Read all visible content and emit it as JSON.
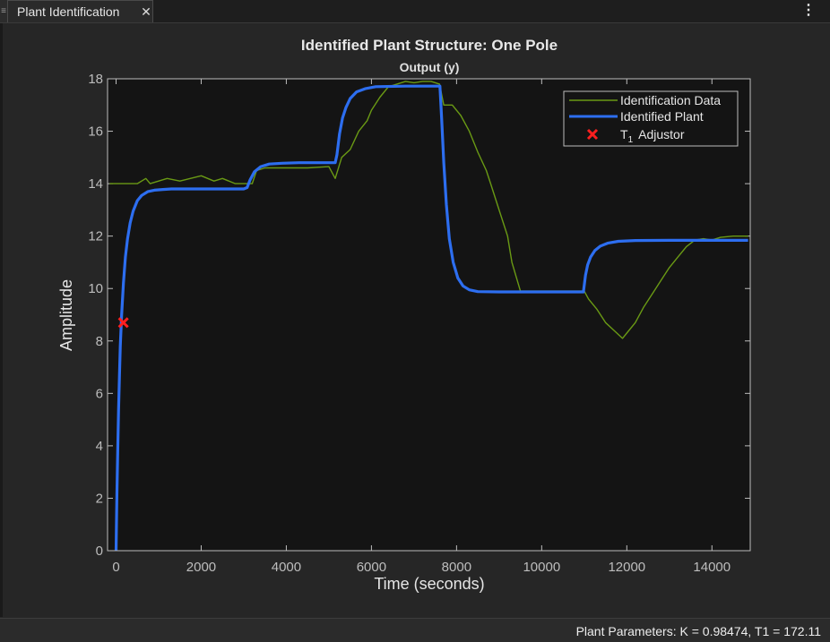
{
  "tab": {
    "title": "Plant Identification"
  },
  "status": {
    "text": "Plant Parameters: K = 0.98474, T1 = 172.11"
  },
  "icons": [
    "grip-icon",
    "close-icon",
    "more-vertical-icon"
  ],
  "colors": {
    "identification_data": "#6a9a14",
    "identified_plant": "#2d6ef0",
    "adjustor": "#ff1f1f",
    "axes_bg": "#141414",
    "figure_bg": "#262626"
  },
  "chart_data": {
    "type": "line",
    "title": "Identified Plant Structure: One Pole",
    "subtitle": "Output (y)",
    "xlabel": "Time (seconds)",
    "ylabel": "Amplitude",
    "xlim": [
      -200,
      14900
    ],
    "ylim": [
      0,
      18
    ],
    "xticks": [
      0,
      2000,
      4000,
      6000,
      8000,
      10000,
      12000,
      14000
    ],
    "yticks": [
      0,
      2,
      4,
      6,
      8,
      10,
      12,
      14,
      16,
      18
    ],
    "grid": false,
    "legend_position": "top-right",
    "legend": {
      "data_label": "Identification Data",
      "plant_label": "Identified Plant",
      "adjustor_main": "T",
      "adjustor_sub": "1",
      "adjustor_rest": "Adjustor"
    },
    "series": [
      {
        "name": "Identification Data",
        "x": [
          -150,
          0,
          500,
          700,
          800,
          1200,
          1500,
          2000,
          2300,
          2500,
          2800,
          3000,
          3200,
          3300,
          3500,
          3800,
          4000,
          4500,
          5000,
          5150,
          5300,
          5500,
          5700,
          5900,
          6000,
          6200,
          6400,
          6600,
          6800,
          7000,
          7200,
          7400,
          7600,
          7700,
          7900,
          8100,
          8300,
          8500,
          8700,
          8800,
          9000,
          9200,
          9300,
          9500,
          10000,
          10500,
          11000,
          11100,
          11300,
          11500,
          11700,
          11900,
          12000,
          12200,
          12400,
          12600,
          12800,
          13000,
          13200,
          13400,
          13600,
          13800,
          14000,
          14200,
          14500,
          14850
        ],
        "y": [
          14.0,
          14.0,
          14.0,
          14.2,
          14.0,
          14.2,
          14.1,
          14.3,
          14.1,
          14.2,
          14.0,
          14.0,
          14.0,
          14.5,
          14.6,
          14.6,
          14.6,
          14.6,
          14.65,
          14.2,
          15.0,
          15.3,
          16.0,
          16.4,
          16.8,
          17.3,
          17.7,
          17.8,
          17.9,
          17.85,
          17.9,
          17.9,
          17.8,
          17.0,
          17.0,
          16.6,
          16.0,
          15.2,
          14.5,
          14.0,
          13.0,
          12.0,
          11.0,
          9.9,
          9.9,
          9.9,
          9.9,
          9.6,
          9.2,
          8.7,
          8.4,
          8.1,
          8.3,
          8.7,
          9.3,
          9.8,
          10.3,
          10.8,
          11.2,
          11.6,
          11.85,
          11.9,
          11.85,
          11.95,
          12.0,
          12.0
        ]
      },
      {
        "name": "Identified Plant",
        "x": [
          0,
          20,
          40,
          60,
          80,
          100,
          130,
          172,
          220,
          270,
          330,
          400,
          500,
          600,
          750,
          900,
          1100,
          1300,
          1600,
          2000,
          2500,
          3000,
          3080,
          3150,
          3250,
          3400,
          3600,
          3900,
          4300,
          5000,
          5150,
          5190,
          5250,
          5320,
          5400,
          5500,
          5650,
          5850,
          6100,
          6800,
          7550,
          7610,
          7650,
          7700,
          7760,
          7830,
          7920,
          8030,
          8150,
          8300,
          8500,
          9000,
          10000,
          10800,
          10980,
          11030,
          11080,
          11150,
          11250,
          11380,
          11550,
          11800,
          12200,
          13000,
          14000,
          14850
        ],
        "y": [
          0.0,
          2.1,
          3.9,
          5.4,
          6.7,
          7.8,
          9.0,
          10.2,
          11.2,
          11.9,
          12.5,
          12.95,
          13.35,
          13.55,
          13.7,
          13.75,
          13.78,
          13.8,
          13.8,
          13.8,
          13.8,
          13.8,
          13.85,
          14.15,
          14.45,
          14.65,
          14.75,
          14.78,
          14.8,
          14.8,
          14.8,
          15.1,
          15.9,
          16.5,
          16.9,
          17.25,
          17.5,
          17.62,
          17.7,
          17.72,
          17.72,
          17.72,
          16.5,
          14.8,
          13.2,
          11.9,
          11.0,
          10.4,
          10.1,
          9.95,
          9.88,
          9.87,
          9.87,
          9.87,
          9.87,
          10.5,
          10.9,
          11.2,
          11.45,
          11.62,
          11.73,
          11.8,
          11.83,
          11.84,
          11.84,
          11.84
        ]
      }
    ],
    "adjustor_point": {
      "x": 172,
      "y": 8.7
    }
  }
}
